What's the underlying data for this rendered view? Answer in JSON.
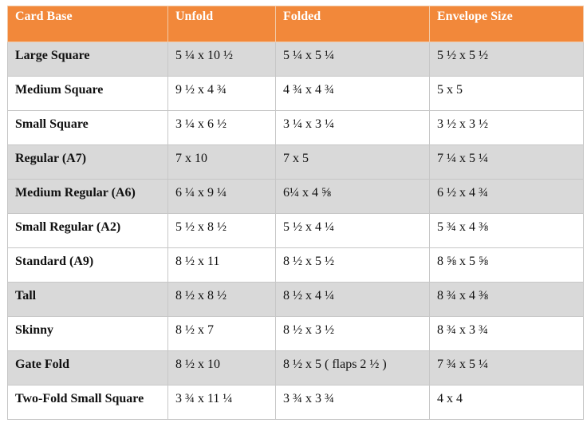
{
  "table": {
    "headers": [
      "Card Base",
      "Unfold",
      "Folded",
      "Envelope Size"
    ],
    "rows": [
      {
        "name": "Large Square",
        "unfold": "5 ¼ x 10 ½",
        "folded": "5 ¼ x 5 ¼",
        "envelope": "5 ½  x 5 ½"
      },
      {
        "name": "Medium Square",
        "unfold": "9 ½  x 4 ¾",
        "folded": "4 ¾  x 4 ¾",
        "envelope": "5 x 5"
      },
      {
        "name": "Small Square",
        "unfold": "3 ¼ x 6 ½",
        "folded": "3 ¼ x 3 ¼",
        "envelope": "3 ½  x 3 ½"
      },
      {
        "name": "Regular (A7)",
        "unfold": "7  x 10",
        "folded": "7 x 5",
        "envelope": "7 ¼ x 5 ¼"
      },
      {
        "name": "Medium Regular (A6)",
        "unfold": "6 ¼ x 9 ¼",
        "folded": "6¼  x 4 ⅝",
        "envelope": "6 ½  x 4 ¾"
      },
      {
        "name": "Small Regular  (A2)",
        "unfold": "5 ½ x 8 ½",
        "folded": "5 ½  x 4 ¼",
        "envelope": "5 ¾ x 4 ⅜"
      },
      {
        "name": "Standard (A9)",
        "unfold": "8 ½ x 11",
        "folded": "8 ½ x 5 ½",
        "envelope": "8 ⅝ x 5 ⅝"
      },
      {
        "name": "Tall",
        "unfold": "8 ½ x 8 ½",
        "folded": "8 ½ x 4 ¼",
        "envelope": "8 ¾  x 4 ⅜"
      },
      {
        "name": "Skinny",
        "unfold": "8 ½ x 7",
        "folded": "8 ½  x 3 ½",
        "envelope": "8 ¾  x 3 ¾"
      },
      {
        "name": "Gate Fold",
        "unfold": "8 ½ x 10",
        "folded": "8 ½ x 5  ( flaps 2 ½  )",
        "envelope": "7 ¾  x 5 ¼"
      },
      {
        "name": "Two-Fold Small Square",
        "unfold": "3 ¾  x 11 ¼",
        "folded": "3 ¾  x 3 ¾",
        "envelope": "4 x 4"
      }
    ]
  },
  "colors": {
    "header_bg": "#f2883a",
    "header_text": "#ffffff",
    "row_shade": "#d9d9d9",
    "row_plain": "#ffffff",
    "grid": "#c7c7c7"
  }
}
